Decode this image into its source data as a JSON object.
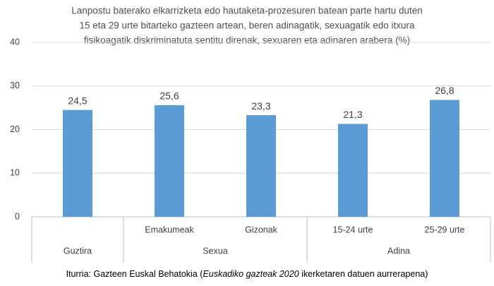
{
  "chart_data": {
    "type": "bar",
    "title": [
      "Lanpostu baterako elkarrizketa edo hautaketa-prozesuren batean parte hartu duten",
      "15 eta 29 urte bitarteko gazteen artean, beren adinagatik, sexuagatik edo itxura",
      "fisikoagatik diskriminatuta sentitu direnak, sexuaren eta adinaren arabera (%)"
    ],
    "categories": [
      null,
      "Emakumeak",
      "Gizonak",
      "15-24 urte",
      "25-29 urte"
    ],
    "groups": [
      {
        "label": "Guztira",
        "size": 1
      },
      {
        "label": "Sexua",
        "size": 2
      },
      {
        "label": "Adina",
        "size": 2
      }
    ],
    "values": [
      24.5,
      25.6,
      23.3,
      21.3,
      26.8
    ],
    "value_labels": [
      "24,5",
      "25,6",
      "23,3",
      "21,3",
      "26,8"
    ],
    "color": "#5b9bd5",
    "ylim": [
      0,
      40
    ],
    "yticks": [
      0,
      10,
      20,
      30,
      40
    ],
    "grid": true,
    "source": {
      "prefix": "Iturria: Gazteen Euskal Behatokia (",
      "italic": "Euskadiko gazteak 2020",
      "suffix": " ikerketaren datuen aurrerapena)"
    }
  }
}
